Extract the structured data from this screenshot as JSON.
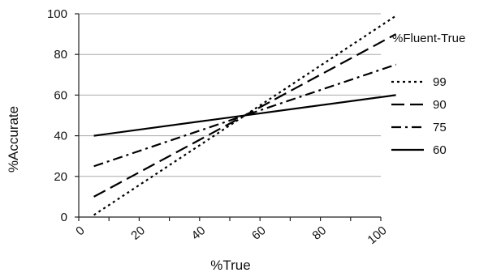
{
  "chart_data": {
    "type": "line",
    "title": "",
    "xlabel": "%True",
    "ylabel": "%Accurate",
    "x": [
      5,
      105
    ],
    "xlim": [
      0,
      100
    ],
    "ylim": [
      0,
      100
    ],
    "x_ticks": [
      "0",
      "20",
      "40",
      "60",
      "80",
      "100"
    ],
    "y_ticks": [
      "0",
      "20",
      "40",
      "60",
      "80",
      "100"
    ],
    "grid": "horizontal",
    "legend": {
      "title": "%Fluent-True",
      "placement": "right"
    },
    "series": [
      {
        "name": "99",
        "dash": "dotted",
        "values": [
          1,
          99
        ]
      },
      {
        "name": "90",
        "dash": "long-dash",
        "values": [
          10,
          90
        ]
      },
      {
        "name": "75",
        "dash": "dash-dot",
        "values": [
          25,
          75
        ]
      },
      {
        "name": "60",
        "dash": "solid",
        "values": [
          40,
          60
        ]
      }
    ]
  }
}
